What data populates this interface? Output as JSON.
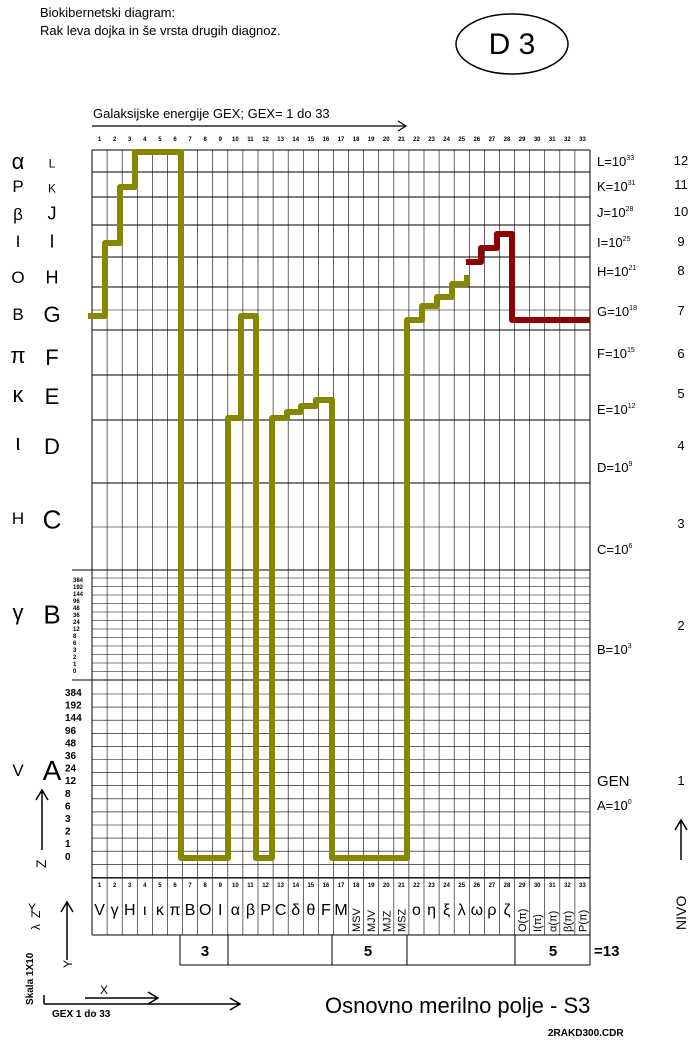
{
  "header": {
    "line1": "Biokibernetski diagram:",
    "line2": "Rak leva dojka in še vrsta drugih diagnoz.",
    "badge": "D 3"
  },
  "axis_title": "Galaksijske energije GEX;    GEX= 1 do 33",
  "columns": [
    "1",
    "2",
    "3",
    "4",
    "5",
    "6",
    "7",
    "8",
    "9",
    "10",
    "11",
    "12",
    "13",
    "14",
    "15",
    "16",
    "17",
    "18",
    "19",
    "20",
    "21",
    "22",
    "23",
    "24",
    "25",
    "26",
    "27",
    "28",
    "29",
    "30",
    "31",
    "32",
    "33"
  ],
  "greek": [
    "α",
    "Ρ",
    "β",
    "Ι",
    "Ο",
    "Β",
    "π",
    "κ",
    "ι",
    "Η",
    "γ",
    "V"
  ],
  "levels": [
    "L",
    "K",
    "J",
    "I",
    "H",
    "G",
    "F",
    "E",
    "D",
    "C",
    "B",
    "A"
  ],
  "level_values": [
    {
      "base": "L=10",
      "exp": "33"
    },
    {
      "base": "K=10",
      "exp": "31"
    },
    {
      "base": "J=10",
      "exp": "28"
    },
    {
      "base": "I=10",
      "exp": "25"
    },
    {
      "base": "H=10",
      "exp": "21"
    },
    {
      "base": "G=10",
      "exp": "18"
    },
    {
      "base": "F=10",
      "exp": "15"
    },
    {
      "base": "E=10",
      "exp": "12"
    },
    {
      "base": "D=10",
      "exp": "9"
    },
    {
      "base": "C=10",
      "exp": "6"
    },
    {
      "base": "B=10",
      "exp": "3"
    },
    {
      "base": "A=10",
      "exp": "0"
    }
  ],
  "gen": "GEN",
  "nivo": [
    "12",
    "11",
    "10",
    "9",
    "8",
    "7",
    "6",
    "5",
    "4",
    "3",
    "2",
    "1"
  ],
  "nivo_label": "NIVO",
  "scale_a": [
    "384",
    "192",
    "144",
    "96",
    "48",
    "36",
    "24",
    "12",
    "8",
    "6",
    "3",
    "2",
    "1",
    "0"
  ],
  "scale_b": [
    "384",
    "192",
    "144",
    "96",
    "48",
    "36",
    "24",
    "12",
    "8",
    "6",
    "3",
    "2",
    "1",
    "0"
  ],
  "symbols": [
    "V",
    "γ",
    "Η",
    "ι",
    "κ",
    "π",
    "Β",
    "Ο",
    "Ι",
    "α",
    "β",
    "Ρ",
    "C",
    "δ",
    "θ",
    "F",
    "M",
    "MSV",
    "MJV",
    "MJZ",
    "MSZ",
    "ο",
    "η",
    "ξ",
    "λ",
    "ω",
    "ρ",
    "ζ",
    "Ο(π)",
    "Ι(π)",
    "α(π)",
    "β(π)",
    "Ρ(π)"
  ],
  "summary": [
    "3",
    "5",
    "5",
    "=13"
  ],
  "footer": {
    "title": "Osnovno merilno polje - S3",
    "file": "2RAKD300.CDR",
    "scale": "Skala 1X10",
    "gex": "GEX 1 do 33",
    "x": "X",
    "y": "Y",
    "y2": "Y",
    "z": "Z",
    "lambda": "λ",
    "z2": "Z"
  }
}
